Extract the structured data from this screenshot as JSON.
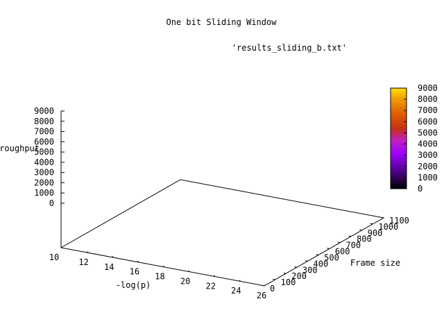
{
  "chart_data": {
    "type": "surface3d",
    "title": "One bit Sliding Window",
    "key_label": "'results_sliding_b.txt'",
    "xlabel": "-log(p)",
    "ylabel": "Frame size",
    "zlabel": "Throughput",
    "x_ticks": [
      "10",
      "12",
      "14",
      "16",
      "18",
      "20",
      "22",
      "24",
      "26"
    ],
    "y_ticks": [
      "0",
      "100",
      "200",
      "300",
      "400",
      "500",
      "600",
      "700",
      "800",
      "900",
      "1000",
      "1100"
    ],
    "z_ticks": [
      "0",
      "1000",
      "2000",
      "3000",
      "4000",
      "5000",
      "6000",
      "7000",
      "8000",
      "9000"
    ],
    "xlim": [
      10,
      26
    ],
    "ylim": [
      0,
      1100
    ],
    "zlim": [
      0,
      9000
    ],
    "colorbar": {
      "ticks": [
        "0",
        "1000",
        "2000",
        "3000",
        "4000",
        "5000",
        "6000",
        "7000",
        "8000",
        "9000"
      ],
      "range": [
        0,
        9000
      ],
      "palette": [
        "#000000",
        "#5a00a0",
        "#a000ff",
        "#c020c0",
        "#c83010",
        "#e06000",
        "#f0a000",
        "#ffe000"
      ]
    },
    "surface_values": []
  }
}
